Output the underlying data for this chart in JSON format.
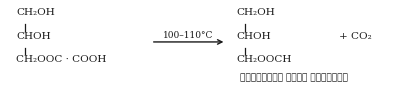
{
  "bg_color": "#ffffff",
  "fig_width": 3.97,
  "fig_height": 1.13,
  "dpi": 100,
  "reactant": {
    "line1": "CH₂OH",
    "line2": "CHOH",
    "line3": "CH₂OOC · COOH"
  },
  "product": {
    "line1": "CH₂OH",
    "line2": "CHOH",
    "line3": "CH₂OOCH"
  },
  "product_label": "ग्लिसरॉल मोनो फॉर्मेट",
  "arrow_label": "100–110°C",
  "co2_text": "+ CO₂",
  "font_size": 7.5,
  "label_font_size": 6.5,
  "hindi_font_size": 6.5,
  "text_color": "#1a1a1a"
}
